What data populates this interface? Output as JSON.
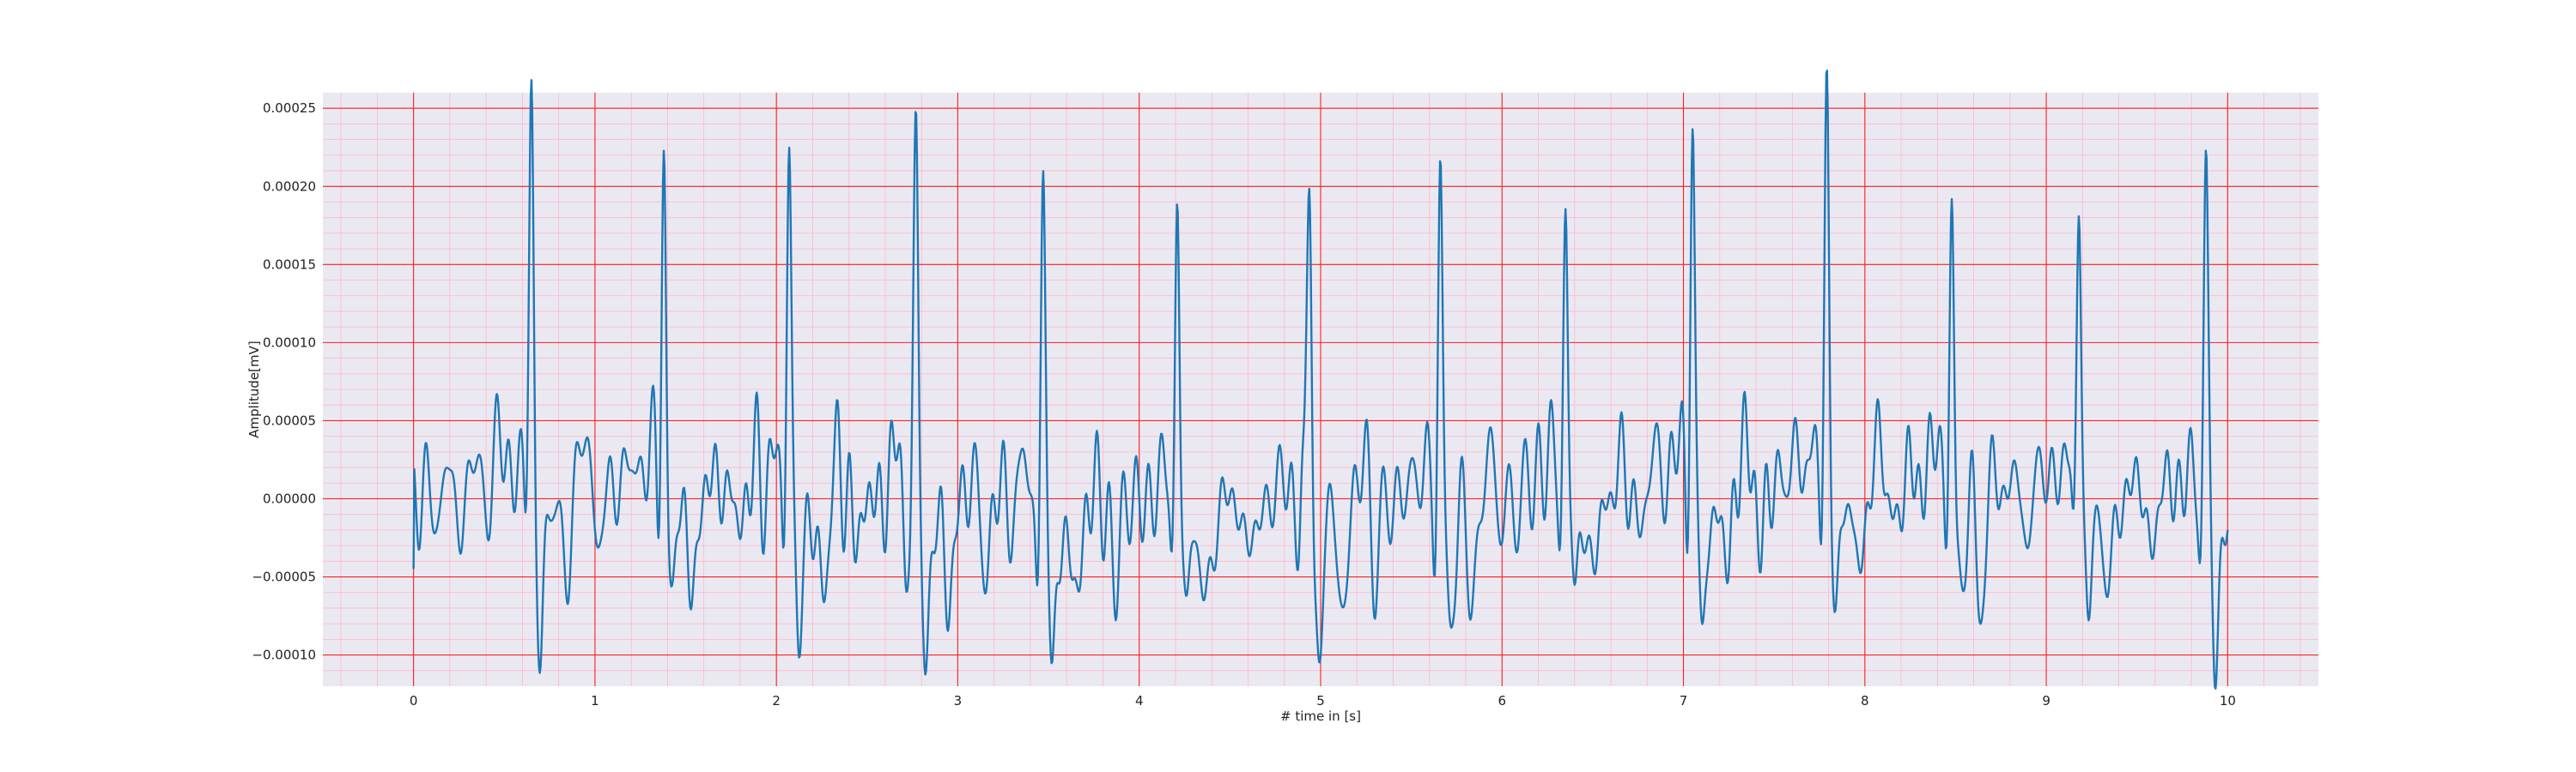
{
  "chart_data": {
    "type": "line",
    "title": "",
    "xlabel": "# time in [s]",
    "ylabel": "Amplitude[mV]",
    "xlim": [
      -0.5,
      10.5
    ],
    "ylim": [
      -0.00012,
      0.00026
    ],
    "x_ticks": [
      0,
      1,
      2,
      3,
      4,
      5,
      6,
      7,
      8,
      9,
      10
    ],
    "x_tick_labels": [
      "0",
      "1",
      "2",
      "3",
      "4",
      "5",
      "6",
      "7",
      "8",
      "9",
      "10"
    ],
    "y_ticks": [
      -0.0001,
      -5e-05,
      0,
      5e-05,
      0.0001,
      0.00015,
      0.0002,
      0.00025
    ],
    "y_tick_labels": [
      "−0.00010",
      "−0.00005",
      "0.00000",
      "0.00005",
      "0.00010",
      "0.00015",
      "0.00020",
      "0.00025"
    ],
    "grid": true,
    "minor_grid": true,
    "legend": "none",
    "colors": {
      "line": "#1f77b4",
      "background": "#eae9f2",
      "major_grid": "#ff2020",
      "minor_grid": "#ffb6c8"
    },
    "series": [
      {
        "duration_s": 10,
        "beats": [
          {
            "t": 0.65,
            "r": 0.00023,
            "s": -9.3e-05
          },
          {
            "t": 1.38,
            "r": 0.000238,
            "s": -8.2e-05
          },
          {
            "t": 2.07,
            "r": 0.000233,
            "s": -8.6e-05
          },
          {
            "t": 2.77,
            "r": 0.000217,
            "s": -7.9e-05
          },
          {
            "t": 3.47,
            "r": 0.000193,
            "s": -8.8e-05
          },
          {
            "t": 4.21,
            "r": 0.000225,
            "s": -7.2e-05
          },
          {
            "t": 4.94,
            "r": 0.000214,
            "s": -8.2e-05
          },
          {
            "t": 5.66,
            "r": 0.000214,
            "s": -7.9e-05
          },
          {
            "t": 6.35,
            "r": 0.000201,
            "s": -8.3e-05
          },
          {
            "t": 7.05,
            "r": 0.000244,
            "s": -0.000103
          },
          {
            "t": 7.79,
            "r": 0.000248,
            "s": -7.2e-05
          },
          {
            "t": 8.48,
            "r": 0.000195,
            "s": -7.9e-05
          },
          {
            "t": 9.18,
            "r": 0.000207,
            "s": -7.8e-05
          },
          {
            "t": 9.88,
            "r": 0.00021,
            "s": -8e-05
          }
        ],
        "start_value": -4.5e-05,
        "end_value": -2e-05
      }
    ]
  }
}
